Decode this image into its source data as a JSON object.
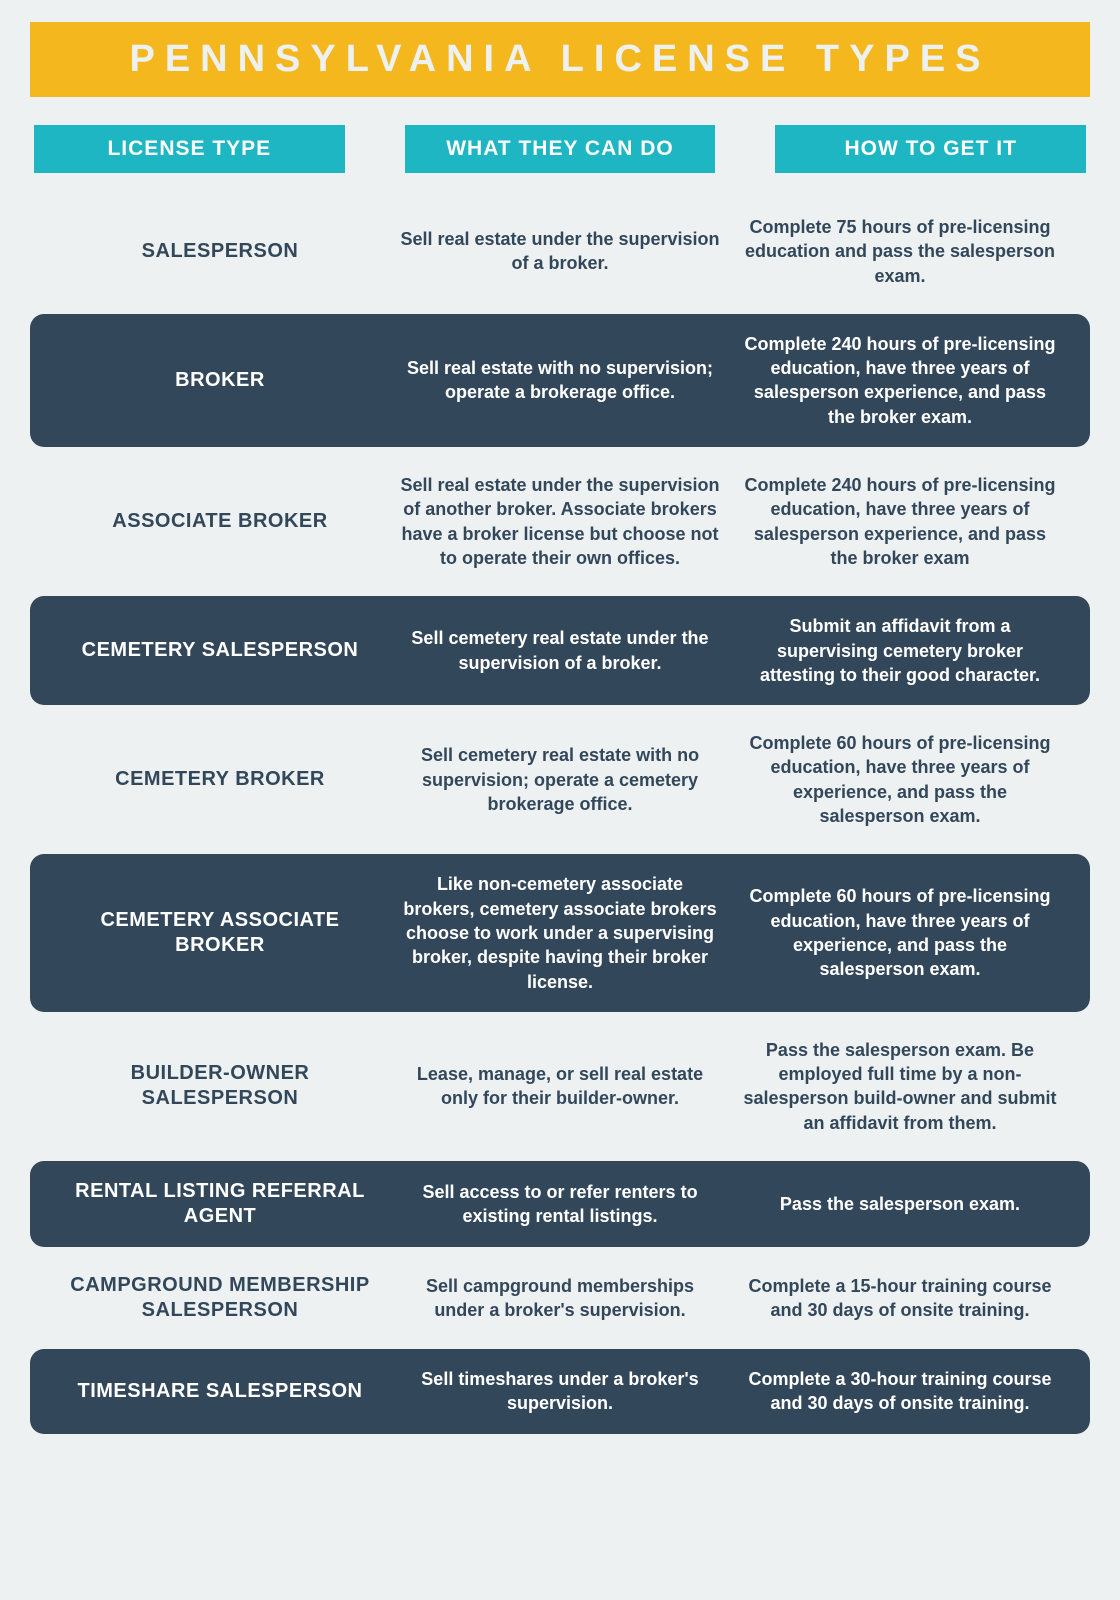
{
  "title": "PENNSYLVANIA LICENSE TYPES",
  "colors": {
    "page_bg": "#edf1f2",
    "title_bg": "#f4b81e",
    "title_text": "#edf1f2",
    "header_bg": "#1fb6c4",
    "header_text": "#ffffff",
    "row_dark_bg": "#33475b",
    "row_dark_text": "#ffffff",
    "row_light_text": "#33475b"
  },
  "headers": {
    "col1": "LICENSE TYPE",
    "col2": "WHAT THEY CAN DO",
    "col3": "HOW TO GET IT"
  },
  "rows": [
    {
      "license": "SALESPERSON",
      "what": "Sell real estate under the supervision of a broker.",
      "how": "Complete 75 hours of pre-licensing education and pass the salesperson exam.",
      "dark": false
    },
    {
      "license": "BROKER",
      "what": "Sell real estate with no supervision; operate a brokerage office.",
      "how": "Complete 240 hours of pre-licensing education, have three years of salesperson experience, and pass the broker exam.",
      "dark": true
    },
    {
      "license": "ASSOCIATE BROKER",
      "what": "Sell real estate under the supervision of another broker. Associate brokers have a broker license but choose not to operate their own offices.",
      "how": "Complete 240 hours of pre-licensing education, have three years of salesperson experience, and pass the broker exam",
      "dark": false
    },
    {
      "license": "CEMETERY SALESPERSON",
      "what": "Sell cemetery real estate under the supervision of a broker.",
      "how": "Submit an affidavit from a supervising cemetery broker attesting to their good character.",
      "dark": true
    },
    {
      "license": "CEMETERY BROKER",
      "what": "Sell cemetery real estate with no supervision; operate a cemetery brokerage office.",
      "how": "Complete 60 hours of pre-licensing education, have three years of experience, and pass the salesperson exam.",
      "dark": false
    },
    {
      "license": "CEMETERY ASSOCIATE BROKER",
      "what": "Like non-cemetery associate brokers, cemetery associate brokers choose to work under a supervising broker, despite having their broker license.",
      "how": "Complete 60 hours of pre-licensing education, have three years of experience, and pass the salesperson exam.",
      "dark": true
    },
    {
      "license": "BUILDER-OWNER SALESPERSON",
      "what": "Lease, manage, or sell real estate only for their builder-owner.",
      "how": "Pass the salesperson exam. Be employed full time by a non-salesperson build-owner and submit an affidavit from them.",
      "dark": false
    },
    {
      "license": "RENTAL LISTING REFERRAL AGENT",
      "what": "Sell  access to or refer renters to existing rental listings.",
      "how": "Pass the salesperson exam.",
      "dark": true
    },
    {
      "license": "CAMPGROUND MEMBERSHIP SALESPERSON",
      "what": "Sell campground memberships under a broker's supervision.",
      "how": "Complete a 15-hour training course and 30 days of onsite training.",
      "dark": false
    },
    {
      "license": "TIMESHARE SALESPERSON",
      "what": "Sell timeshares under a broker's supervision.",
      "how": "Complete a 30-hour training course and 30 days of onsite training.",
      "dark": true
    }
  ]
}
